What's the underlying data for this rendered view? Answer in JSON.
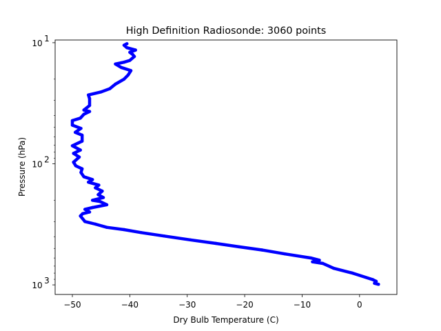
{
  "chart_data": {
    "type": "line",
    "title": "High Definition Radiosonde: 3060 points",
    "xlabel": "Dry Bulb Temperature (C)",
    "ylabel": "Pressure (hPa)",
    "xlim": [
      -53.0,
      6.5
    ],
    "ylim": [
      1200,
      9.5
    ],
    "yscale": "log",
    "y_inverted": true,
    "grid": false,
    "legend": "none",
    "x_ticks": [
      -50,
      -40,
      -30,
      -20,
      -10,
      0
    ],
    "x_tick_labels": [
      "−50",
      "−40",
      "−30",
      "−20",
      "−10",
      "0"
    ],
    "y_ticks": [
      10,
      100,
      1000
    ],
    "y_tick_labels": [
      {
        "base": "10",
        "exp": "1"
      },
      {
        "base": "10",
        "exp": "2"
      },
      {
        "base": "10",
        "exp": "3"
      }
    ],
    "series": [
      {
        "color": "#0000ff",
        "marker": "dot",
        "points": [
          {
            "t": 3.3,
            "p": 990
          },
          {
            "t": 2.6,
            "p": 970
          },
          {
            "t": 2.9,
            "p": 935
          },
          {
            "t": 2.3,
            "p": 905
          },
          {
            "t": -1.2,
            "p": 800
          },
          {
            "t": -4.5,
            "p": 730
          },
          {
            "t": -6.4,
            "p": 665
          },
          {
            "t": -8.2,
            "p": 645
          },
          {
            "t": -7.0,
            "p": 625
          },
          {
            "t": -8.5,
            "p": 600
          },
          {
            "t": -13.0,
            "p": 555
          },
          {
            "t": -17.0,
            "p": 515
          },
          {
            "t": -21.0,
            "p": 485
          },
          {
            "t": -25.0,
            "p": 455
          },
          {
            "t": -29.5,
            "p": 425
          },
          {
            "t": -34.0,
            "p": 395
          },
          {
            "t": -38.0,
            "p": 370
          },
          {
            "t": -41.0,
            "p": 350
          },
          {
            "t": -44.0,
            "p": 335
          },
          {
            "t": -46.0,
            "p": 315
          },
          {
            "t": -47.8,
            "p": 300
          },
          {
            "t": -48.6,
            "p": 270
          },
          {
            "t": -48.2,
            "p": 258
          },
          {
            "t": -47.0,
            "p": 250
          },
          {
            "t": -47.8,
            "p": 238
          },
          {
            "t": -46.5,
            "p": 230
          },
          {
            "t": -44.0,
            "p": 218
          },
          {
            "t": -45.2,
            "p": 205
          },
          {
            "t": -46.5,
            "p": 200
          },
          {
            "t": -44.6,
            "p": 190
          },
          {
            "t": -45.5,
            "p": 180
          },
          {
            "t": -44.8,
            "p": 168
          },
          {
            "t": -46.0,
            "p": 158
          },
          {
            "t": -45.4,
            "p": 150
          },
          {
            "t": -47.2,
            "p": 142
          },
          {
            "t": -46.5,
            "p": 135
          },
          {
            "t": -48.0,
            "p": 128
          },
          {
            "t": -48.5,
            "p": 118
          },
          {
            "t": -48.3,
            "p": 110
          },
          {
            "t": -49.4,
            "p": 104
          },
          {
            "t": -49.8,
            "p": 97
          },
          {
            "t": -48.8,
            "p": 88
          },
          {
            "t": -49.8,
            "p": 82
          },
          {
            "t": -48.6,
            "p": 77
          },
          {
            "t": -50.0,
            "p": 71
          },
          {
            "t": -48.3,
            "p": 65
          },
          {
            "t": -48.3,
            "p": 58
          },
          {
            "t": -49.5,
            "p": 55
          },
          {
            "t": -48.5,
            "p": 51
          },
          {
            "t": -50.0,
            "p": 48
          },
          {
            "t": -50.0,
            "p": 44
          },
          {
            "t": -48.6,
            "p": 42
          },
          {
            "t": -48.0,
            "p": 39
          },
          {
            "t": -47.0,
            "p": 37
          },
          {
            "t": -48.0,
            "p": 36
          },
          {
            "t": -47.0,
            "p": 33
          },
          {
            "t": -47.0,
            "p": 29
          },
          {
            "t": -47.2,
            "p": 27
          },
          {
            "t": -45.0,
            "p": 25.5
          },
          {
            "t": -43.5,
            "p": 24
          },
          {
            "t": -42.5,
            "p": 22
          },
          {
            "t": -41.0,
            "p": 20
          },
          {
            "t": -40.3,
            "p": 18.5
          },
          {
            "t": -39.8,
            "p": 17
          },
          {
            "t": -41.5,
            "p": 16
          },
          {
            "t": -42.5,
            "p": 15
          },
          {
            "t": -41.0,
            "p": 14.5
          },
          {
            "t": -40.0,
            "p": 14
          },
          {
            "t": -39.2,
            "p": 13
          },
          {
            "t": -39.5,
            "p": 12.5
          },
          {
            "t": -40.0,
            "p": 12
          },
          {
            "t": -39.0,
            "p": 11.5
          },
          {
            "t": -40.5,
            "p": 11
          },
          {
            "t": -41.0,
            "p": 10.5
          },
          {
            "t": -40.5,
            "p": 10.2
          }
        ]
      }
    ]
  }
}
